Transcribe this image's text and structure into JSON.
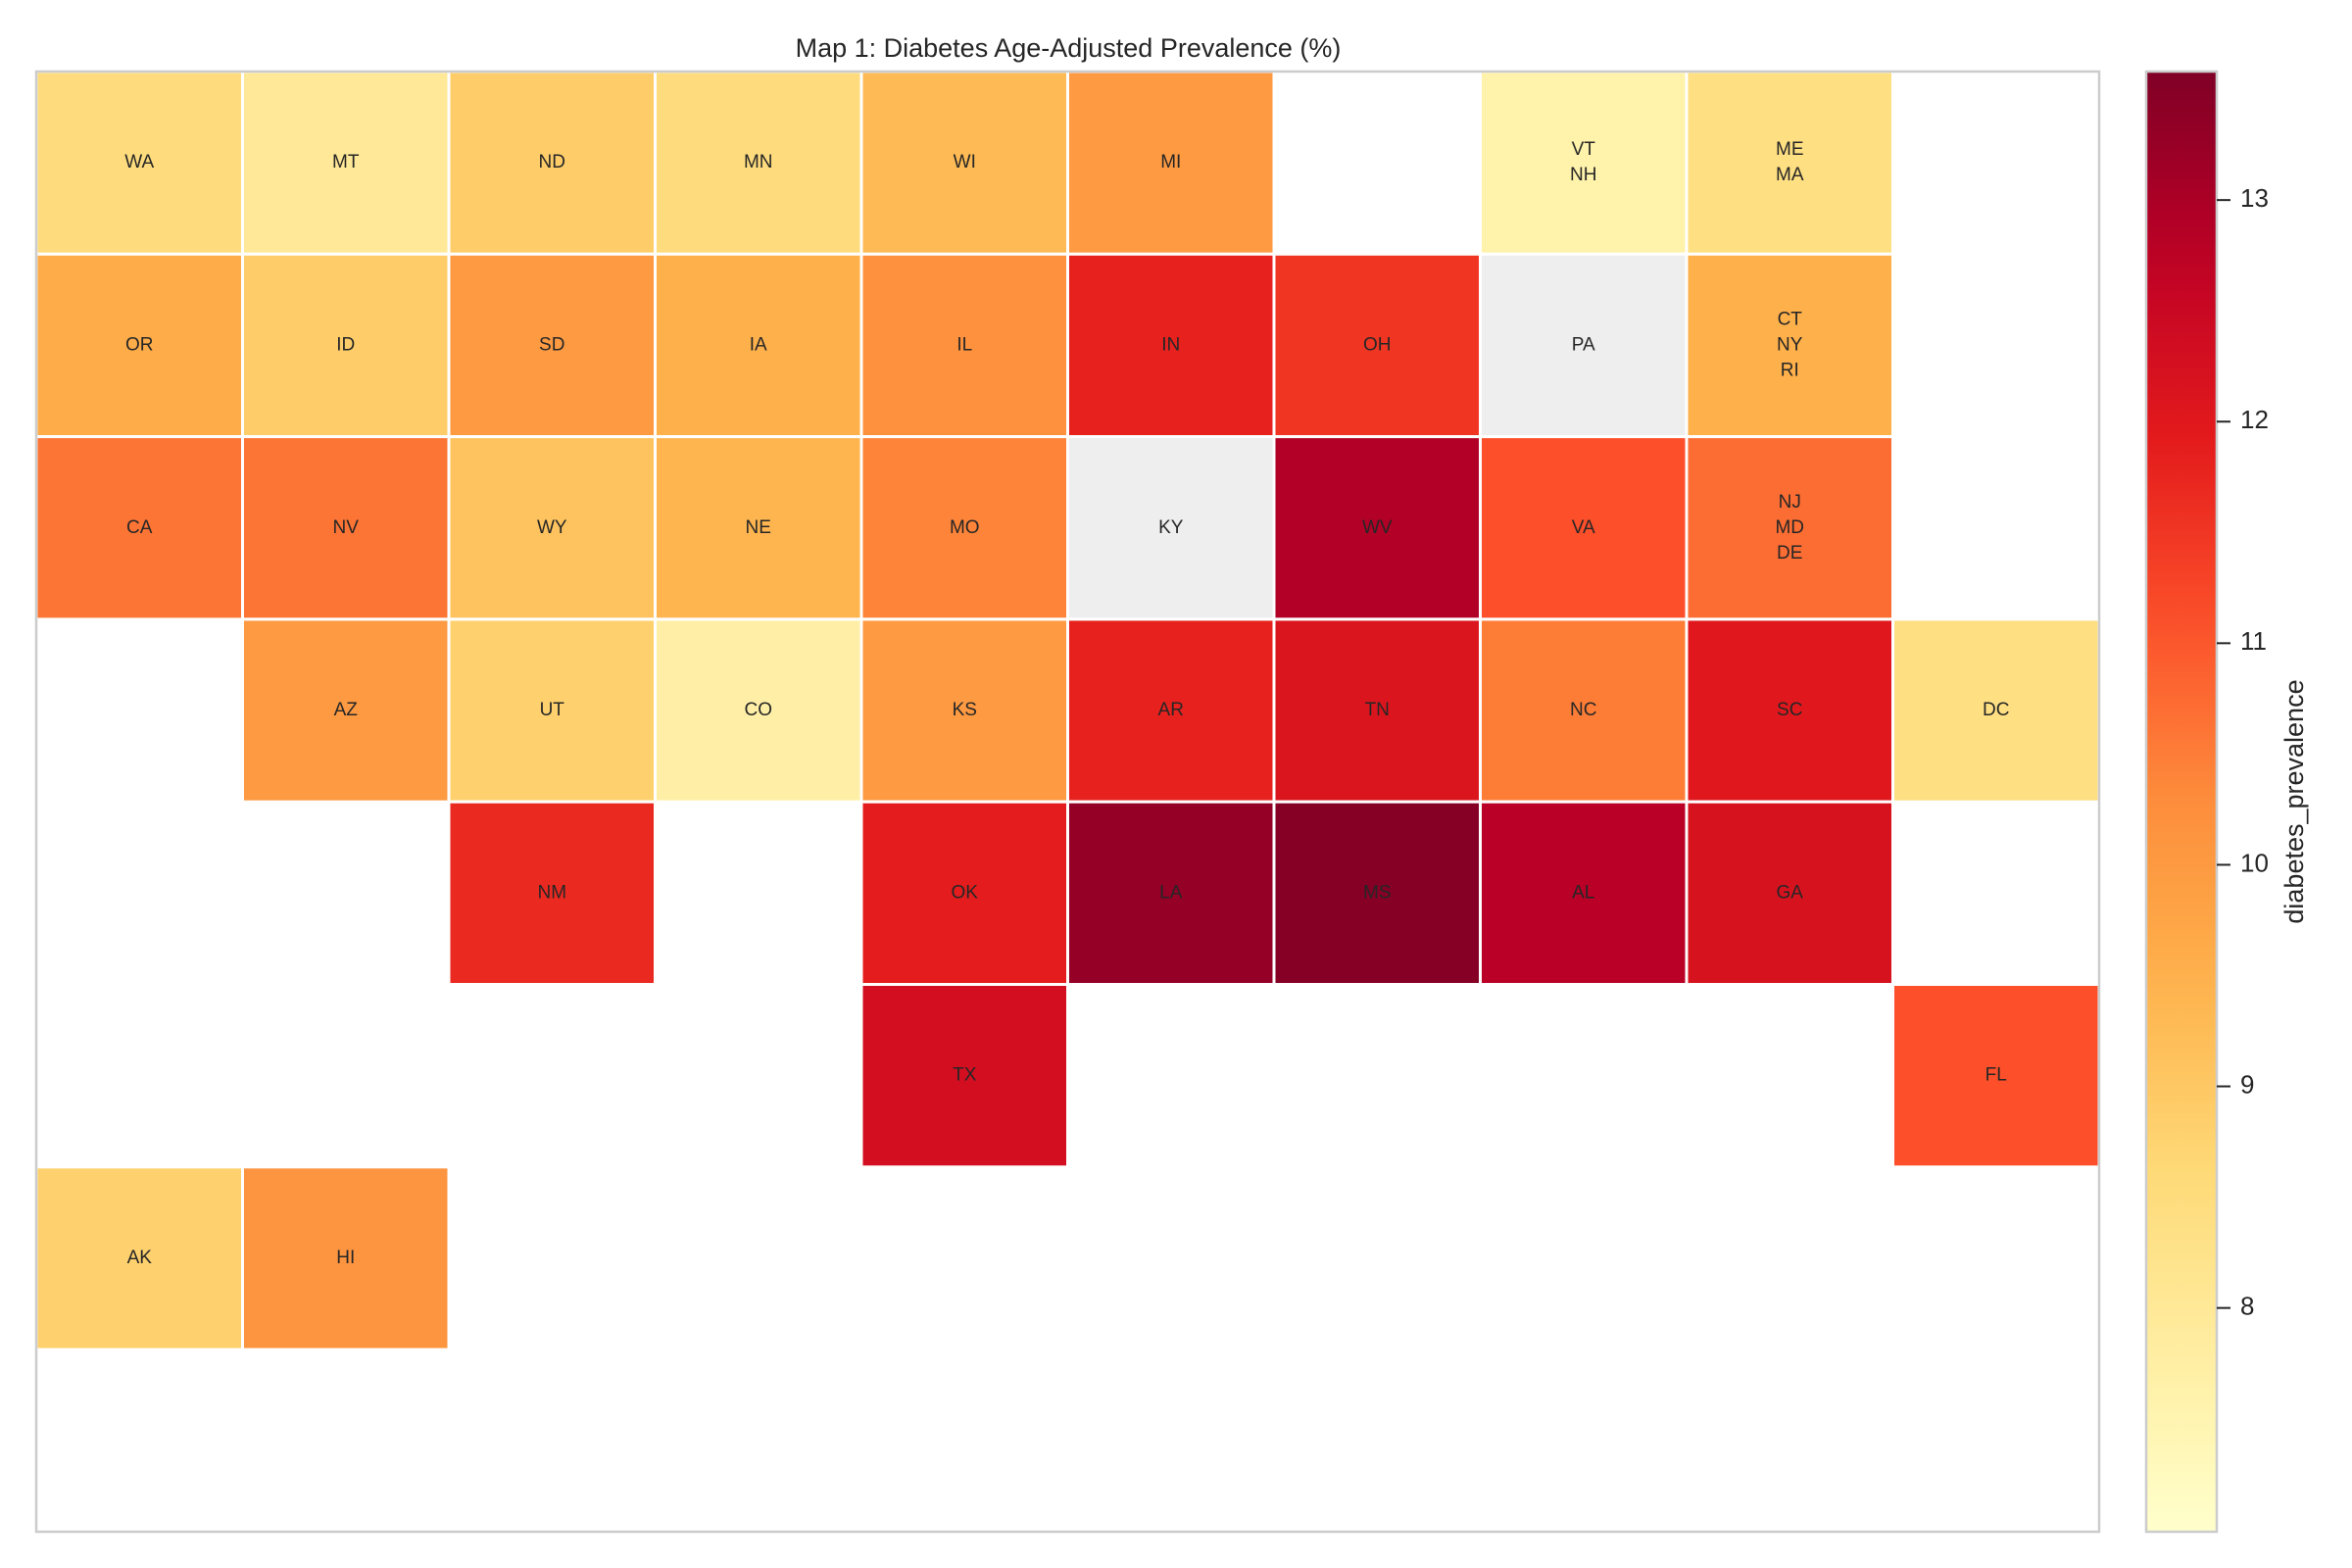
{
  "chart_data": {
    "type": "heatmap",
    "subtype": "tile-grid choropleth",
    "title": "Map 1: Diabetes Age-Adjusted Prevalence (%)",
    "colorbar": {
      "label": "diabetes_prevalence",
      "range": [
        6.99,
        13.58
      ],
      "ticks": [
        8,
        9,
        10,
        11,
        12,
        13
      ],
      "colormap": "YlOrRd",
      "missing_color": "#eeeeee"
    },
    "tiles": [
      {
        "labels": [
          "WA"
        ],
        "value": 8.5
      },
      {
        "labels": [
          "MT"
        ],
        "value": 8.0
      },
      {
        "labels": [
          "ND"
        ],
        "value": 8.9
      },
      {
        "labels": [
          "MN"
        ],
        "value": 8.5
      },
      {
        "labels": [
          "WI"
        ],
        "value": 9.3
      },
      {
        "labels": [
          "MI"
        ],
        "value": 10.0
      },
      {
        "labels": [
          "VT",
          "NH"
        ],
        "value": 7.6
      },
      {
        "labels": [
          "ME",
          "MA"
        ],
        "value": 8.4
      },
      {
        "labels": [
          "OR"
        ],
        "value": 9.6
      },
      {
        "labels": [
          "ID"
        ],
        "value": 8.9
      },
      {
        "labels": [
          "SD"
        ],
        "value": 10.0
      },
      {
        "labels": [
          "IA"
        ],
        "value": 9.5
      },
      {
        "labels": [
          "IL"
        ],
        "value": 10.2
      },
      {
        "labels": [
          "IN"
        ],
        "value": 11.8
      },
      {
        "labels": [
          "OH"
        ],
        "value": 11.5
      },
      {
        "labels": [
          "PA"
        ],
        "value": null
      },
      {
        "labels": [
          "CT",
          "NY",
          "RI"
        ],
        "value": 9.5
      },
      {
        "labels": [
          "CA"
        ],
        "value": 10.6
      },
      {
        "labels": [
          "NV"
        ],
        "value": 10.6
      },
      {
        "labels": [
          "WY"
        ],
        "value": 9.1
      },
      {
        "labels": [
          "NE"
        ],
        "value": 9.4
      },
      {
        "labels": [
          "MO"
        ],
        "value": 10.4
      },
      {
        "labels": [
          "KY"
        ],
        "value": null
      },
      {
        "labels": [
          "WV"
        ],
        "value": 12.9
      },
      {
        "labels": [
          "VA"
        ],
        "value": 11.1
      },
      {
        "labels": [
          "NJ",
          "MD",
          "DE"
        ],
        "value": 10.7
      },
      {
        "labels": [
          "AZ"
        ],
        "value": 10.0
      },
      {
        "labels": [
          "UT"
        ],
        "value": 8.8
      },
      {
        "labels": [
          "CO"
        ],
        "value": 7.7
      },
      {
        "labels": [
          "KS"
        ],
        "value": 10.0
      },
      {
        "labels": [
          "AR"
        ],
        "value": 11.8
      },
      {
        "labels": [
          "TN"
        ],
        "value": 12.1
      },
      {
        "labels": [
          "NC"
        ],
        "value": 10.5
      },
      {
        "labels": [
          "SC"
        ],
        "value": 12.0
      },
      {
        "labels": [
          "DC"
        ],
        "value": 8.4
      },
      {
        "labels": [
          "NM"
        ],
        "value": 11.7
      },
      {
        "labels": [
          "OK"
        ],
        "value": 11.9
      },
      {
        "labels": [
          "LA"
        ],
        "value": 13.3
      },
      {
        "labels": [
          "MS"
        ],
        "value": 13.5
      },
      {
        "labels": [
          "AL"
        ],
        "value": 12.8
      },
      {
        "labels": [
          "GA"
        ],
        "value": 12.2
      },
      {
        "labels": [
          "TX"
        ],
        "value": 12.3
      },
      {
        "labels": [
          "FL"
        ],
        "value": 11.1
      },
      {
        "labels": [
          "AK"
        ],
        "value": 8.8
      },
      {
        "labels": [
          "HI"
        ],
        "value": 10.1
      }
    ]
  }
}
